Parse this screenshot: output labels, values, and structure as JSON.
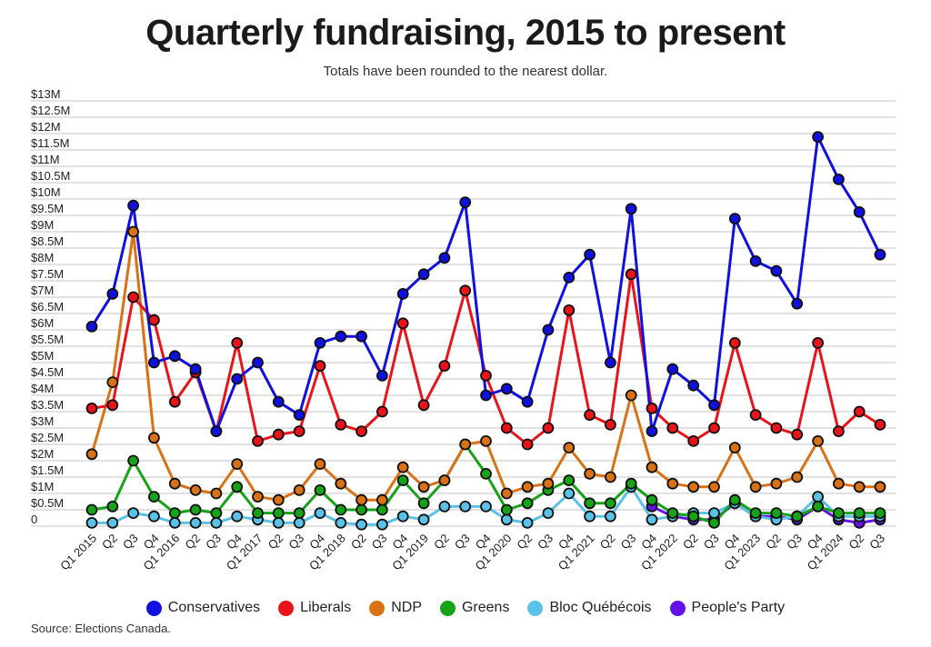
{
  "chart_data": {
    "type": "line",
    "title": "Quarterly fundraising, 2015 to present",
    "subtitle": "Totals have been rounded to the nearest dollar.",
    "source": "Source: Elections Canada.",
    "xlabel": "",
    "ylabel": "",
    "units": "millions of dollars",
    "ylim": [
      0,
      13
    ],
    "grid": true,
    "legend_position": "bottom",
    "y_ticks": [
      {
        "value": 0,
        "label": "0"
      },
      {
        "value": 0.5,
        "label": "$0.5M"
      },
      {
        "value": 1,
        "label": "$1M"
      },
      {
        "value": 1.5,
        "label": "$1.5M"
      },
      {
        "value": 2,
        "label": "$2M"
      },
      {
        "value": 2.5,
        "label": "$2.5M"
      },
      {
        "value": 3,
        "label": "$3M"
      },
      {
        "value": 3.5,
        "label": "$3.5M"
      },
      {
        "value": 4,
        "label": "$4M"
      },
      {
        "value": 4.5,
        "label": "$4.5M"
      },
      {
        "value": 5,
        "label": "$5M"
      },
      {
        "value": 5.5,
        "label": "$5.5M"
      },
      {
        "value": 6,
        "label": "$6M"
      },
      {
        "value": 6.5,
        "label": "$6.5M"
      },
      {
        "value": 7,
        "label": "$7M"
      },
      {
        "value": 7.5,
        "label": "$7.5M"
      },
      {
        "value": 8,
        "label": "$8M"
      },
      {
        "value": 8.5,
        "label": "$8.5M"
      },
      {
        "value": 9,
        "label": "$9M"
      },
      {
        "value": 9.5,
        "label": "$9.5M"
      },
      {
        "value": 10,
        "label": "$10M"
      },
      {
        "value": 10.5,
        "label": "$10.5M"
      },
      {
        "value": 11,
        "label": "$11M"
      },
      {
        "value": 11.5,
        "label": "$11.5M"
      },
      {
        "value": 12,
        "label": "$12M"
      },
      {
        "value": 12.5,
        "label": "$12.5M"
      },
      {
        "value": 13,
        "label": "$13M"
      }
    ],
    "categories": [
      "Q1 2015",
      "Q2",
      "Q3",
      "Q4",
      "Q1 2016",
      "Q2",
      "Q3",
      "Q4",
      "Q1 2017",
      "Q2",
      "Q3",
      "Q4",
      "Q1 2018",
      "Q2",
      "Q3",
      "Q4",
      "Q1 2019",
      "Q2",
      "Q3",
      "Q4",
      "Q1 2020",
      "Q2",
      "Q3",
      "Q4",
      "Q1 2021",
      "Q2",
      "Q3",
      "Q4",
      "Q1 2022",
      "Q2",
      "Q3",
      "Q4",
      "Q1 2023",
      "Q2",
      "Q3",
      "Q4",
      "Q1 2024",
      "Q2",
      "Q3"
    ],
    "series": [
      {
        "name": "Conservatives",
        "color": "#1010e0",
        "values": [
          6.1,
          7.1,
          9.8,
          5.0,
          5.2,
          4.8,
          2.9,
          4.5,
          5.0,
          3.8,
          3.4,
          5.6,
          5.8,
          5.8,
          4.6,
          7.1,
          7.7,
          8.2,
          9.9,
          4.0,
          4.2,
          3.8,
          6.0,
          7.6,
          8.3,
          5.0,
          9.7,
          2.9,
          4.8,
          4.3,
          3.7,
          9.4,
          8.1,
          7.8,
          6.8,
          11.9,
          10.6,
          9.6,
          8.3
        ]
      },
      {
        "name": "Liberals",
        "color": "#e8141a",
        "values": [
          3.6,
          3.7,
          7.0,
          6.3,
          3.8,
          4.7,
          2.9,
          5.6,
          2.6,
          2.8,
          2.9,
          4.9,
          3.1,
          2.9,
          3.5,
          6.2,
          3.7,
          4.9,
          7.2,
          4.6,
          3.0,
          2.5,
          3.0,
          6.6,
          3.4,
          3.1,
          7.7,
          3.6,
          3.0,
          2.6,
          3.0,
          5.6,
          3.4,
          3.0,
          2.8,
          5.6,
          2.9,
          3.5,
          3.1
        ]
      },
      {
        "name": "NDP",
        "color": "#d97116",
        "values": [
          2.2,
          4.4,
          9.0,
          2.7,
          1.3,
          1.1,
          1.0,
          1.9,
          0.9,
          0.8,
          1.1,
          1.9,
          1.3,
          0.8,
          0.8,
          1.8,
          1.2,
          1.4,
          2.5,
          2.6,
          1.0,
          1.2,
          1.3,
          2.4,
          1.6,
          1.5,
          4.0,
          1.8,
          1.3,
          1.2,
          1.2,
          2.4,
          1.2,
          1.3,
          1.5,
          2.6,
          1.3,
          1.2,
          1.2
        ]
      },
      {
        "name": "Greens",
        "color": "#17a317",
        "values": [
          0.5,
          0.6,
          2.0,
          0.9,
          0.4,
          0.5,
          0.4,
          1.2,
          0.4,
          0.4,
          0.4,
          1.1,
          0.5,
          0.5,
          0.5,
          1.4,
          0.7,
          1.4,
          2.5,
          1.6,
          0.5,
          0.7,
          1.1,
          1.4,
          0.7,
          0.7,
          1.3,
          0.8,
          0.4,
          0.3,
          0.1,
          0.8,
          0.4,
          0.4,
          0.3,
          0.6,
          0.4,
          0.4,
          0.4
        ]
      },
      {
        "name": "Bloc Québécois",
        "color": "#5bc2e7",
        "values": [
          0.1,
          0.1,
          0.4,
          0.3,
          0.1,
          0.1,
          0.1,
          0.3,
          0.2,
          0.1,
          0.1,
          0.4,
          0.1,
          0.05,
          0.05,
          0.3,
          0.2,
          0.6,
          0.6,
          0.6,
          0.2,
          0.1,
          0.4,
          1.0,
          0.3,
          0.3,
          1.2,
          0.2,
          0.3,
          0.4,
          0.4,
          0.7,
          0.3,
          0.2,
          0.3,
          0.9,
          0.3,
          0.3,
          0.3
        ]
      },
      {
        "name": "People's Party",
        "color": "#6510e6",
        "values": [
          null,
          null,
          null,
          null,
          null,
          null,
          null,
          null,
          null,
          null,
          null,
          null,
          null,
          null,
          null,
          null,
          null,
          null,
          null,
          null,
          null,
          null,
          null,
          null,
          null,
          null,
          null,
          0.6,
          0.3,
          0.2,
          0.2,
          0.7,
          0.3,
          0.3,
          0.2,
          0.6,
          0.2,
          0.1,
          0.2
        ]
      }
    ]
  }
}
